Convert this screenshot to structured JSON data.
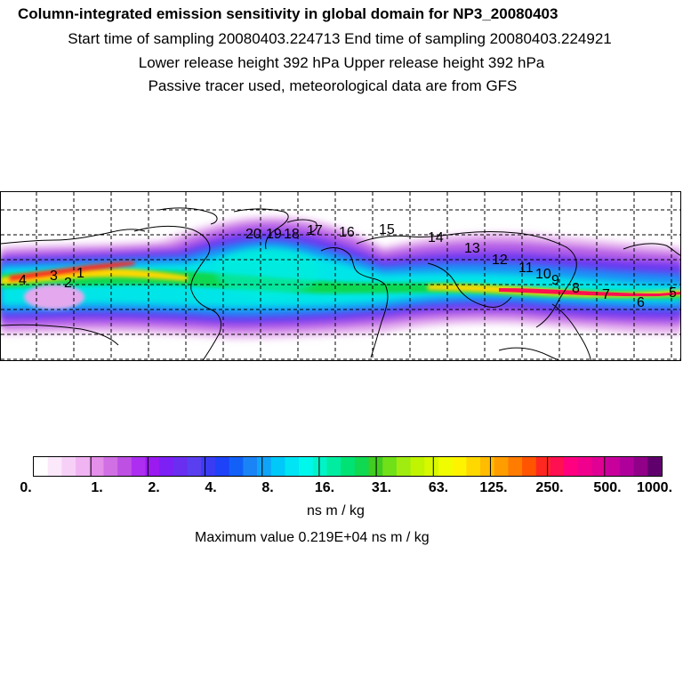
{
  "header": {
    "title": "Column-integrated emission sensitivity in global domain for NP3_20080403",
    "sampling": "Start time of sampling 20080403.224713     End time of sampling 20080403.224921",
    "release": "Lower release height  392 hPa        Upper release height  392 hPa",
    "note": "Passive tracer used, meteorological data are from GFS"
  },
  "map": {
    "trajectory_labels": [
      "4",
      "3",
      "2",
      "1",
      "20",
      "19",
      "18",
      "17",
      "16",
      "15",
      "14",
      "13",
      "12",
      "11",
      "10",
      "9",
      "8",
      "7",
      "6",
      "5"
    ]
  },
  "colorbar": {
    "colors": [
      "#ffffff",
      "#fbe8fb",
      "#f7d0f7",
      "#f1b4f2",
      "#e48fe9",
      "#d070e4",
      "#bf50e4",
      "#ad2ef0",
      "#9a1af0",
      "#7d20f5",
      "#6a2ef0",
      "#5a3ff0",
      "#3a3cf4",
      "#1e42f8",
      "#1260f8",
      "#1a84f6",
      "#10a4f8",
      "#00c8f8",
      "#00e4f4",
      "#00f8ec",
      "#00f4c8",
      "#00eca0",
      "#00e274",
      "#10d850",
      "#40cc20",
      "#70e018",
      "#a0ec10",
      "#c0f400",
      "#d8f800",
      "#f0fc00",
      "#fff400",
      "#ffd800",
      "#ffbc00",
      "#ff9c00",
      "#ff7c00",
      "#ff5400",
      "#ff2820",
      "#ff1050",
      "#ff0080",
      "#f0008c",
      "#e00094",
      "#c8009c",
      "#b0009c",
      "#900088",
      "#60006c"
    ],
    "ticks": [
      "0.",
      "1.",
      "2.",
      "4.",
      "8.",
      "16.",
      "31.",
      "63.",
      "125.",
      "250.",
      "500.",
      "1000."
    ],
    "units": "ns m / kg",
    "max_label": "Maximum value  0.219E+04 ns m / kg"
  }
}
